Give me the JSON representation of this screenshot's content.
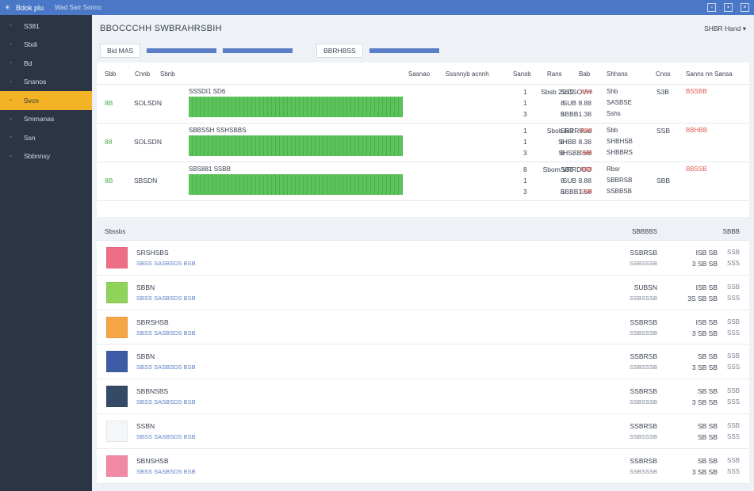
{
  "window": {
    "title": "Bdok plu",
    "subtitle": "Wad Sarr Sonno",
    "ctrl_min": "▫",
    "ctrl_max": "▪",
    "ctrl_close": "×"
  },
  "sidebar": {
    "items": [
      {
        "icon": "▫",
        "label": "S381"
      },
      {
        "icon": "▫",
        "label": "Sbdi"
      },
      {
        "icon": "▫",
        "label": "Bd"
      },
      {
        "icon": "▫",
        "label": "Snsnos"
      },
      {
        "icon": "▫",
        "label": "Svcn"
      },
      {
        "icon": "▫",
        "label": "Smmanas"
      },
      {
        "icon": "▫",
        "label": "Ssn"
      },
      {
        "icon": "▫",
        "label": "Sbbnnsy"
      }
    ],
    "active_index": 4
  },
  "header": {
    "title": "BBOCCCHH SWBRAHRSBIH",
    "user": "SHBR Hand ▾"
  },
  "toolbar": {
    "chip1": "Bid MAS",
    "chip2": "BBRHBSS"
  },
  "table": {
    "headers": [
      "Sbb",
      "Cnnb",
      "Sbnb",
      "Sasnao",
      "Sssnnyb acnnh",
      "Sansb",
      "Rans",
      "Bab",
      "Shhsns",
      "Cnos",
      "Sanns nn Sansa"
    ],
    "rows": [
      {
        "id": "8B",
        "date": "SOLSDN",
        "label": "SSSDI1 SD6",
        "progress": 1.0,
        "names": [
          "Sbsb 21.CSOVH",
          "SUB 8.88",
          "SBBB1.38"
        ],
        "n1": [
          "1",
          "1",
          "3"
        ],
        "n2": [
          "SB5",
          "8",
          "8"
        ],
        "n3": [
          "SBD",
          "",
          ""
        ],
        "st": [
          "Shb",
          "SASBSE",
          "Sshs"
        ],
        "s2": [
          "S3B",
          "",
          ""
        ],
        "s3": [
          "BSSBB",
          "",
          ""
        ]
      },
      {
        "id": "88",
        "date": "SOLSDN",
        "label": "SBBSSH SSHSBBS",
        "progress": 1.0,
        "names": [
          "Sbob.RRR8Ud",
          "SHBB 8.38",
          "SHSBB.5B"
        ],
        "n1": [
          "1",
          "1",
          "3"
        ],
        "n2": [
          "SB3",
          "8",
          "8"
        ],
        "n3": [
          "BBB",
          "",
          "SBB"
        ],
        "st": [
          "Sbb",
          "SHBHSB",
          "SHBBRS"
        ],
        "s2": [
          "SSB",
          "",
          ""
        ],
        "s3": [
          "BBHBB",
          "",
          ""
        ]
      },
      {
        "id": "8B",
        "date": "SBSDN",
        "label": "SBS881 SSBB",
        "progress": 1.0,
        "names": [
          "Sbom VRRDOD",
          "SUB 8.88",
          "SBBB1.58"
        ],
        "n1": [
          "8",
          "1",
          "3"
        ],
        "n2": [
          "SB3",
          "8",
          "8"
        ],
        "n3": [
          "BBB",
          "",
          "SSB"
        ],
        "st": [
          "Rbsr",
          "SBBRSB",
          "SSBBSB"
        ],
        "s2": [
          "",
          "SBB",
          ""
        ],
        "s3": [
          "BBSSB",
          "",
          ""
        ]
      }
    ]
  },
  "list": {
    "headers": [
      "Sbssbs",
      "SBBBBS",
      "SBBB"
    ],
    "items": [
      {
        "color": "#ee6e85",
        "name": "SRSHSBS",
        "sub": "SBSS SASBSDS BSB",
        "r1": "SSBRSB",
        "r2": "SSBSSSB",
        "r3": "ISB SB",
        "r4": "3 SB SB",
        "r5": "SSB",
        "r6": "SSS"
      },
      {
        "color": "#8fd35a",
        "name": "SBBN",
        "sub": "SBSS SASBSDS BSB",
        "r1": "SUBSN",
        "r2": "SSBSSSB",
        "r3": "ISB SB",
        "r4": "3S SB SB",
        "r5": "SSB",
        "r6": "SSS"
      },
      {
        "color": "#f5a545",
        "name": "SBRSHSB",
        "sub": "SBSS SASBSDS BSB",
        "r1": "SSBRSB",
        "r2": "SSBSSSB",
        "r3": "ISB SB",
        "r4": "3 SB SB",
        "r5": "SSB",
        "r6": "SSS"
      },
      {
        "color": "#3d5ba6",
        "name": "SBBN",
        "sub": "SBSS SASBSDS BSB",
        "r1": "SSBRSB",
        "r2": "SSBSSSB",
        "r3": "SB SB",
        "r4": "3 SB SB",
        "r5": "SSB",
        "r6": "SSS"
      },
      {
        "color": "#344a67",
        "name": "SBBNSBS",
        "sub": "SBSS SASBSDS BSB",
        "r1": "SSBRSB",
        "r2": "SSBSSSB",
        "r3": "SB SB",
        "r4": "3 SB SB",
        "r5": "SSB",
        "r6": "SSS"
      },
      {
        "color": "#f4f6f9",
        "name": "SSBN",
        "sub": "SBSS SASBSDS BSB",
        "r1": "SSBRSB",
        "r2": "SSBSSSB",
        "r3": "SB SB",
        "r4": "SB SB",
        "r5": "SSB",
        "r6": "SSS"
      },
      {
        "color": "#f38aa5",
        "name": "SBNSHSB",
        "sub": "SBSS SASBSDS BSB",
        "r1": "SSBRSB",
        "r2": "SSBSSSB",
        "r3": "SB SB",
        "r4": "3 SB SB",
        "r5": "SSB",
        "r6": "SSS"
      }
    ]
  }
}
